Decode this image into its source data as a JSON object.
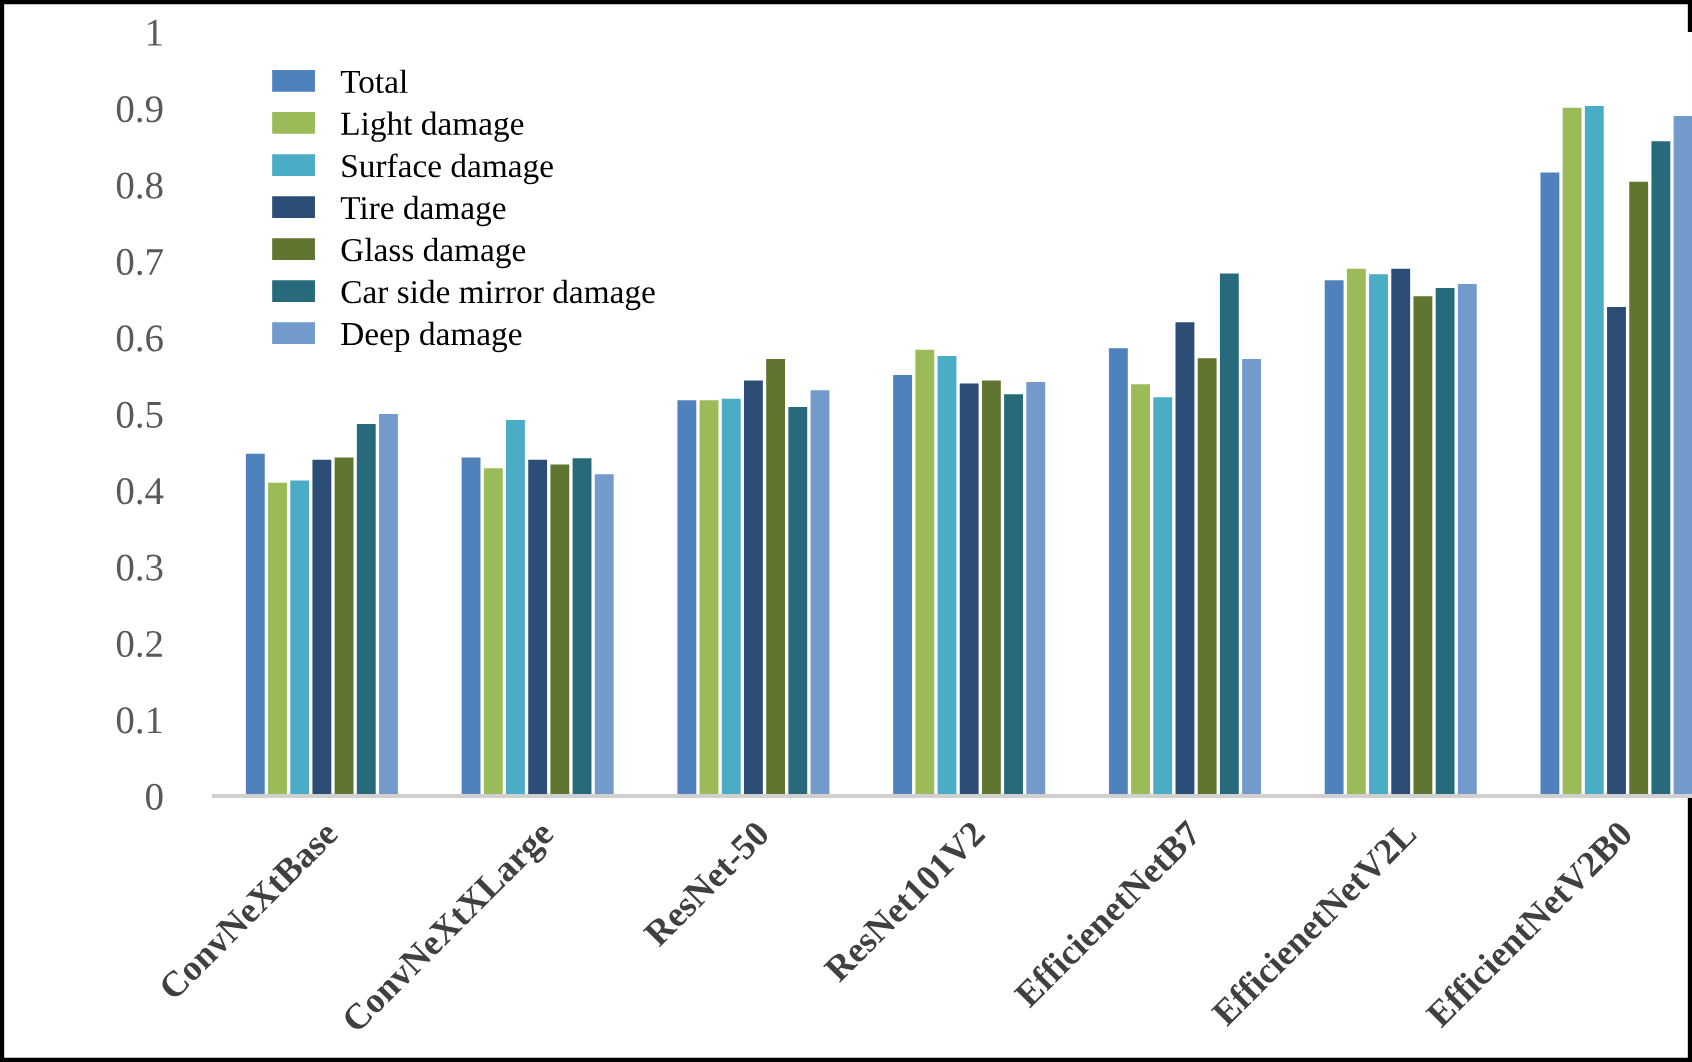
{
  "chart_data": {
    "type": "bar",
    "categories": [
      "ConvNeXtBase",
      "ConvNeXtXLarge",
      "ResNet-50",
      "ResNet101V2",
      "EfficienetNetB7",
      "EfficienetNetV2L",
      "EfficientNetV2B0"
    ],
    "series": [
      {
        "name": "Total",
        "color": "#4f81bd",
        "values": [
          0.448,
          0.443,
          0.518,
          0.551,
          0.586,
          0.675,
          0.816
        ]
      },
      {
        "name": "Light damage",
        "color": "#9bbb59",
        "values": [
          0.41,
          0.429,
          0.518,
          0.584,
          0.539,
          0.69,
          0.901
        ]
      },
      {
        "name": "Surface damage",
        "color": "#4bacc6",
        "values": [
          0.413,
          0.492,
          0.52,
          0.576,
          0.522,
          0.683,
          0.903
        ]
      },
      {
        "name": "Tire damage",
        "color": "#2c4d75",
        "values": [
          0.44,
          0.44,
          0.544,
          0.54,
          0.62,
          0.69,
          0.64
        ]
      },
      {
        "name": "Glass damage",
        "color": "#607530",
        "values": [
          0.443,
          0.434,
          0.572,
          0.544,
          0.573,
          0.654,
          0.804
        ]
      },
      {
        "name": "Car side mirror damage",
        "color": "#276a7c",
        "values": [
          0.487,
          0.442,
          0.509,
          0.526,
          0.684,
          0.665,
          0.857
        ]
      },
      {
        "name": "Deep damage",
        "color": "#729aca",
        "values": [
          0.5,
          0.421,
          0.531,
          0.542,
          0.572,
          0.67,
          0.89
        ]
      }
    ],
    "ylim": [
      0,
      1
    ],
    "yticks": [
      0,
      0.1,
      0.2,
      0.3,
      0.4,
      0.5,
      0.6,
      0.7,
      0.8,
      0.9,
      1
    ],
    "grid": false,
    "legend": "top left"
  }
}
